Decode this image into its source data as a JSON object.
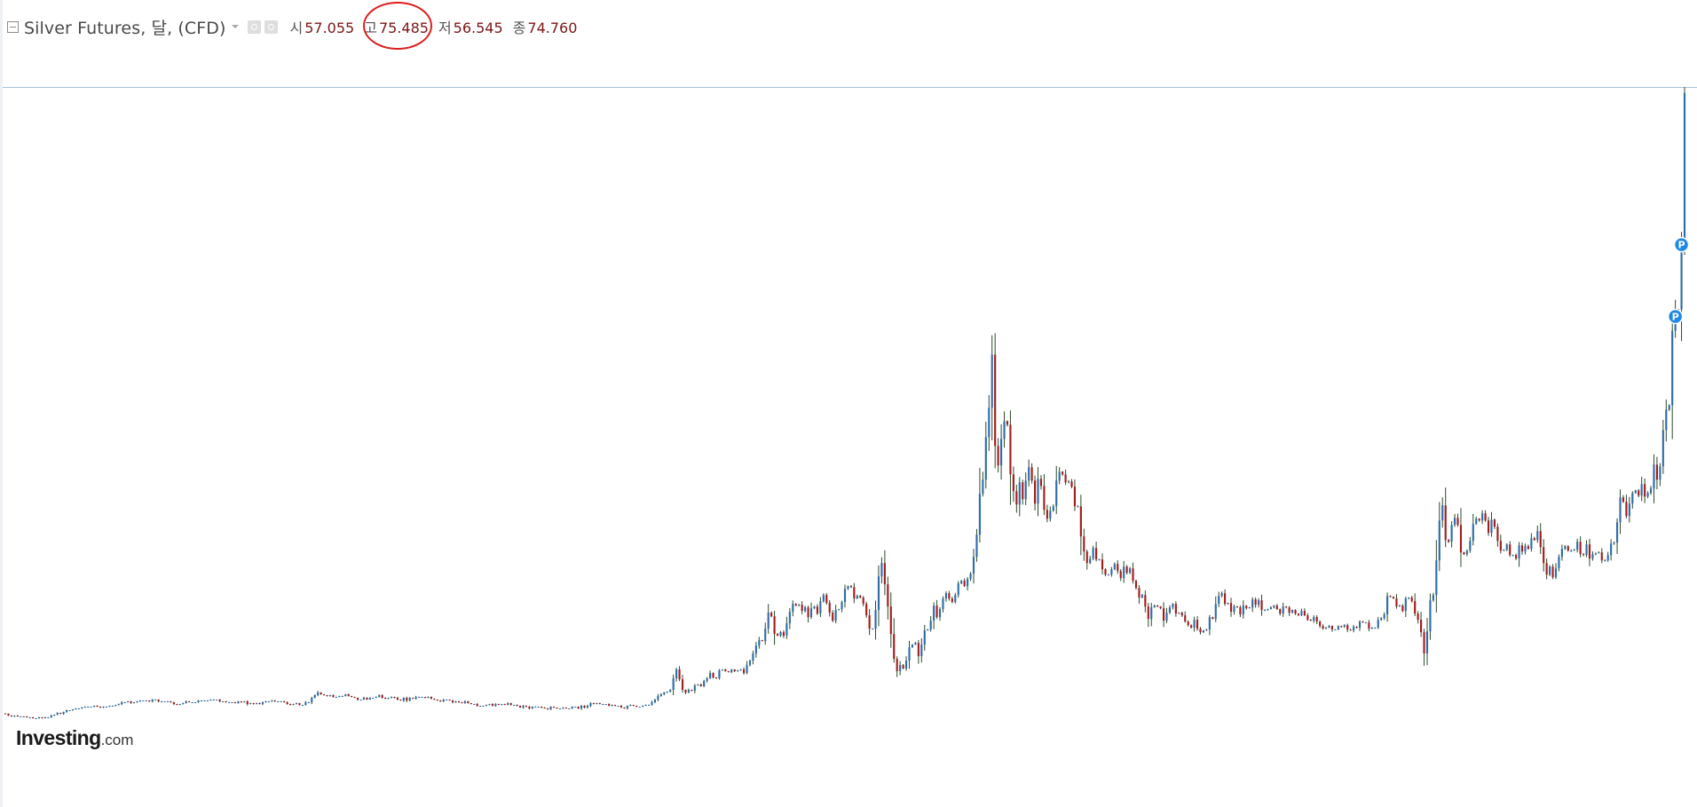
{
  "header": {
    "symbol": "Silver Futures, 달, (CFD)",
    "open_label": "시",
    "open_value": "57.055",
    "high_label": "고",
    "high_value": "75.485",
    "low_label": "저",
    "low_value": "56.545",
    "close_label": "종",
    "close_value": "74.760"
  },
  "logo": {
    "main": "Investing",
    "sub": ".com"
  },
  "marker_label": "P",
  "colors": {
    "up": "#2e6da8",
    "down": "#a31d1d",
    "wick": "#2b4a2b",
    "marker": "#1e88e5",
    "high_line": "#aac4d8",
    "highlight": "#dc1f1f"
  },
  "chart_data": {
    "type": "candlestick",
    "title": "Silver Futures, 달, (CFD)",
    "xlabel": "",
    "ylabel": "",
    "y_max_reference": 75.485,
    "last_candle": {
      "open": 57.055,
      "high": 75.485,
      "low": 56.545,
      "close": 74.76
    },
    "series": [
      {
        "values": [
          4.8,
          4.6,
          4.5,
          4.6,
          4.5,
          4.5,
          4.5,
          4.4,
          4.4,
          4.3,
          4.3,
          4.4,
          4.3,
          4.4,
          4.4,
          4.6,
          4.7,
          4.9,
          4.8,
          5.0,
          5.2,
          5.2,
          5.3,
          5.4,
          5.4,
          5.5,
          5.6,
          5.6,
          5.6,
          5.7,
          5.6,
          5.5,
          5.6,
          5.6,
          5.7,
          5.7,
          5.8,
          5.9,
          6.1,
          6.1,
          6.2,
          6.0,
          6.1,
          6.2,
          6.3,
          6.3,
          6.3,
          6.2,
          6.4,
          6.4,
          6.2,
          6.2,
          6.2,
          6.2,
          6.1,
          5.9,
          5.8,
          5.9,
          6.0,
          6.2,
          6.1,
          6.1,
          6.1,
          6.3,
          6.3,
          6.3,
          6.3,
          6.4,
          6.4,
          6.4,
          6.2,
          6.2,
          6.1,
          6.1,
          6.1,
          6.0,
          6.2,
          6.1,
          6.2,
          5.9,
          6.0,
          5.9,
          6.0,
          5.9,
          6.1,
          6.2,
          6.2,
          6.3,
          6.2,
          6.2,
          6.2,
          6.1,
          5.9,
          5.8,
          5.9,
          6.0,
          5.8,
          5.8,
          6.1,
          6.1,
          6.6,
          6.9,
          7.2,
          7.0,
          6.9,
          6.8,
          6.9,
          6.7,
          6.7,
          6.8,
          6.8,
          7.0,
          6.8,
          6.7,
          6.6,
          6.4,
          6.4,
          6.6,
          6.4,
          6.6,
          6.6,
          6.7,
          6.9,
          6.6,
          6.5,
          6.6,
          6.7,
          6.6,
          6.4,
          6.3,
          6.6,
          6.3,
          6.6,
          6.5,
          6.7,
          6.7,
          6.7,
          6.6,
          6.7,
          6.5,
          6.4,
          6.3,
          6.2,
          6.4,
          6.4,
          6.3,
          6.1,
          6.2,
          6.1,
          6.0,
          6.2,
          6.0,
          5.9,
          5.9,
          5.7,
          5.7,
          5.7,
          5.8,
          5.9,
          5.7,
          5.9,
          5.8,
          5.9,
          5.8,
          6.0,
          5.8,
          5.8,
          5.7,
          5.5,
          5.7,
          5.6,
          5.4,
          5.6,
          5.6,
          5.6,
          5.5,
          5.4,
          5.3,
          5.6,
          5.5,
          5.4,
          5.4,
          5.5,
          5.4,
          5.4,
          5.6,
          5.6,
          5.4,
          5.7,
          5.5,
          5.7,
          6.0,
          5.9,
          6.0,
          5.9,
          5.9,
          5.9,
          5.7,
          5.8,
          5.7,
          5.7,
          5.5,
          5.4,
          5.7,
          5.8,
          5.7,
          5.6,
          5.6,
          5.7,
          5.8,
          5.8,
          6.1,
          6.4,
          6.8,
          7.0,
          7.2,
          7.3,
          7.5,
          8.8,
          9.8,
          8.7,
          7.5,
          7.2,
          7.5,
          7.4,
          8.0,
          8.1,
          7.9,
          8.5,
          8.8,
          9.4,
          8.9,
          8.8,
          9.7,
          9.8,
          9.6,
          9.5,
          9.8,
          9.6,
          9.7,
          9.8,
          9.4,
          10.3,
          10.8,
          11.6,
          12.5,
          13.1,
          13.0,
          14.4,
          16.2,
          15.8,
          13.8,
          13.6,
          14.0,
          13.6,
          15.0,
          16.3,
          17.2,
          17.0,
          17.1,
          16.4,
          16.8,
          15.7,
          16.7,
          16.9,
          16.1,
          17.5,
          18.2,
          17.3,
          16.2,
          15.3,
          16.5,
          16.6,
          17.4,
          18.9,
          19.2,
          19.1,
          17.8,
          18.1,
          17.9,
          17.2,
          15.9,
          14.4,
          14.4,
          16.5,
          20.3,
          21.8,
          19.4,
          16.9,
          13.8,
          11.0,
          9.6,
          10.3,
          9.9,
          10.8,
          12.3,
          12.6,
          12.8,
          11.3,
          12.6,
          14.2,
          14.3,
          15.3,
          17.0,
          15.7,
          16.6,
          17.8,
          18.4,
          17.8,
          17.4,
          18.2,
          19.5,
          19.8,
          19.2,
          20.0,
          20.6,
          22.5,
          25.0,
          29.6,
          31.2,
          36.0,
          39.3,
          45.3,
          35.0,
          32.8,
          35.8,
          37.8,
          37.4,
          31.8,
          29.9,
          28.4,
          30.9,
          29.0,
          31.1,
          32.6,
          31.1,
          28.5,
          31.3,
          30.5,
          27.8,
          26.8,
          27.7,
          28.2,
          31.1,
          32.1,
          31.8,
          30.9,
          31.0,
          30.4,
          28.2,
          28.2,
          24.8,
          23.1,
          21.8,
          22.3,
          23.5,
          22.2,
          22.2,
          21.1,
          20.5,
          20.5,
          21.1,
          21.7,
          20.9,
          20.1,
          21.4,
          20.7,
          21.2,
          19.8,
          19.0,
          17.9,
          18.2,
          16.9,
          15.5,
          16.8,
          17.0,
          16.9,
          16.7,
          15.3,
          16.2,
          16.8,
          17.2,
          16.1,
          16.2,
          15.9,
          15.2,
          14.8,
          14.5,
          15.4,
          14.4,
          14.0,
          14.2,
          14.3,
          15.7,
          15.5,
          17.2,
          18.1,
          18.4,
          17.2,
          17.3,
          16.3,
          16.9,
          16.8,
          16.0,
          17.0,
          16.7,
          16.8,
          17.7,
          17.1,
          17.6,
          16.5,
          16.5,
          16.6,
          16.8,
          17.0,
          16.6,
          16.1,
          16.9,
          16.8,
          16.2,
          16.5,
          16.1,
          15.9,
          16.4,
          15.9,
          15.4,
          15.3,
          15.7,
          15.2,
          14.7,
          14.4,
          14.5,
          14.7,
          14.3,
          14.3,
          14.7,
          14.6,
          14.8,
          14.3,
          14.2,
          14.6,
          14.5,
          15.2,
          15.1,
          15.1,
          14.4,
          14.5,
          14.5,
          15.4,
          15.6,
          16.0,
          18.1,
          18.0,
          17.8,
          16.9,
          17.0,
          16.4,
          17.8,
          17.9,
          17.5,
          16.1,
          15.4,
          14.0,
          11.6,
          14.1,
          17.6,
          18.2,
          22.1,
          26.6,
          28.3,
          24.4,
          24.2,
          26.1,
          26.9,
          26.1,
          23.0,
          22.8,
          23.2,
          24.3,
          26.2,
          26.8,
          26.6,
          27.4,
          26.6,
          25.2,
          26.7,
          25.9,
          24.3,
          23.2,
          23.3,
          23.9,
          22.7,
          22.7,
          22.3,
          23.8,
          23.1,
          23.7,
          23.4,
          24.6,
          24.4,
          25.4,
          23.6,
          21.8,
          20.5,
          21.4,
          20.2,
          21.2,
          22.5,
          23.4,
          23.7,
          23.2,
          23.2,
          23.3,
          24.2,
          22.8,
          22.7,
          23.9,
          22.3,
          22.8,
          22.9,
          23.0,
          22.1,
          22.1,
          22.7,
          24.0,
          24.1,
          26.4,
          29.2,
          28.7,
          27.1,
          28.5,
          29.7,
          30.0,
          29.4,
          30.7,
          29.3,
          29.7,
          30.2,
          32.9,
          31.2,
          32.7,
          36.8,
          39.1,
          39.6,
          48.0,
          50.2,
          50.4,
          57.1,
          74.8
        ]
      }
    ]
  }
}
